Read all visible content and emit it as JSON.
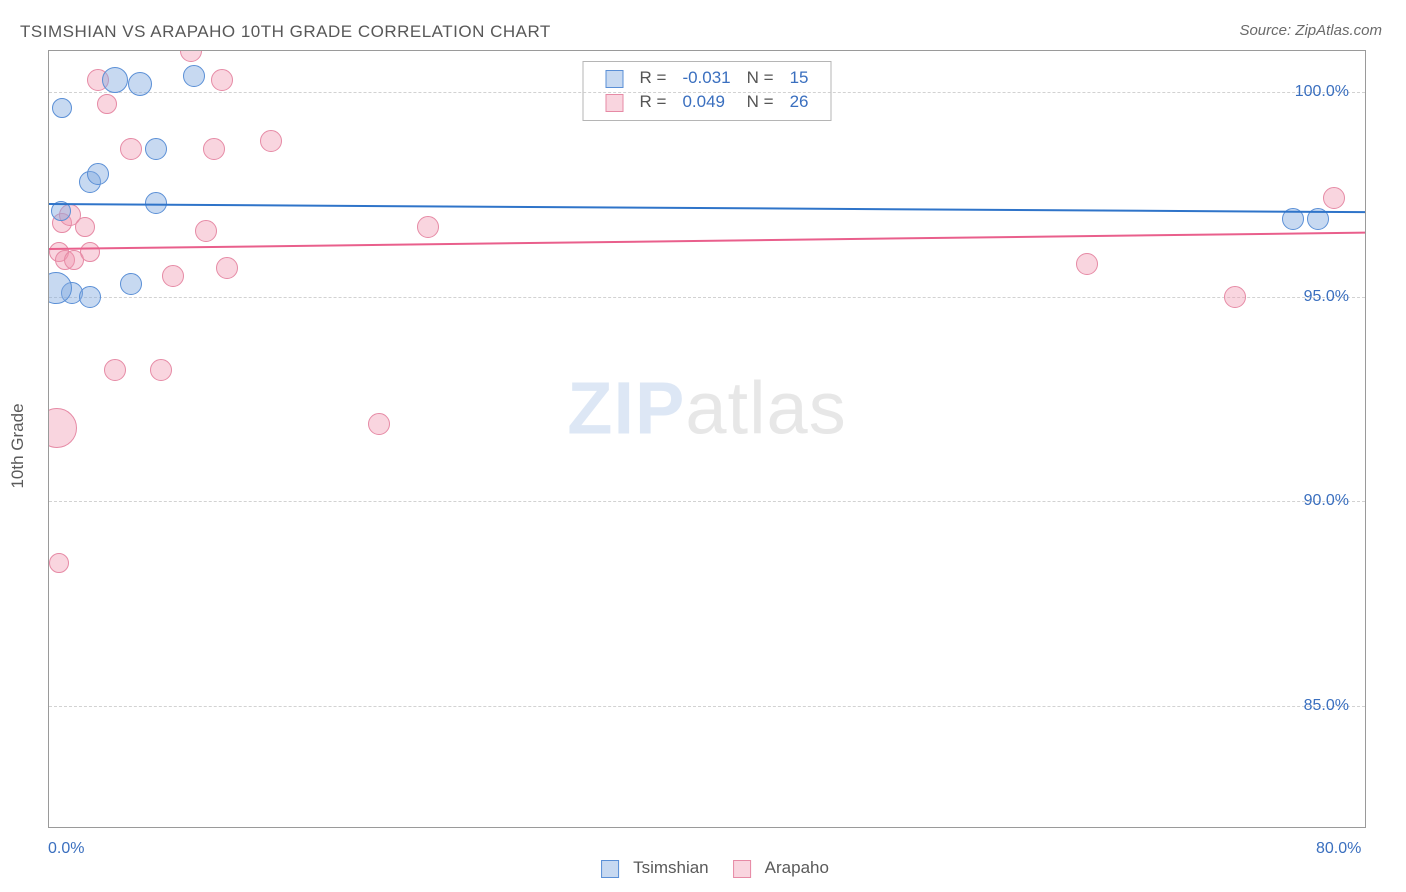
{
  "title": "TSIMSHIAN VS ARAPAHO 10TH GRADE CORRELATION CHART",
  "source_label": "Source: ZipAtlas.com",
  "y_axis_label": "10th Grade",
  "watermark": {
    "part1": "ZIP",
    "part2": "atlas"
  },
  "colors": {
    "series1_fill": "rgba(130,170,225,0.45)",
    "series1_stroke": "#5a8fd6",
    "series1_line": "#2f74c9",
    "series2_fill": "rgba(240,150,175,0.40)",
    "series2_stroke": "#e68aa5",
    "series2_line": "#e95f8c",
    "label_color": "#3a6fbf",
    "axis_text": "#5a5a5a"
  },
  "chart": {
    "type": "scatter",
    "xlim": [
      0,
      80
    ],
    "ylim": [
      82,
      101
    ],
    "y_ticks": [
      85,
      90,
      95,
      100
    ],
    "y_tick_labels": [
      "85.0%",
      "90.0%",
      "95.0%",
      "100.0%"
    ],
    "x_ticks_every": 5,
    "x_start_label": "0.0%",
    "x_end_label": "80.0%"
  },
  "stats_box": {
    "rows": [
      {
        "swatch": "series1",
        "r_label": "R =",
        "r_value": "-0.031",
        "n_label": "N =",
        "n_value": "15"
      },
      {
        "swatch": "series2",
        "r_label": "R =",
        "r_value": "0.049",
        "n_label": "N =",
        "n_value": "26"
      }
    ]
  },
  "bottom_legend": {
    "items": [
      {
        "swatch": "series1",
        "label": "Tsimshian"
      },
      {
        "swatch": "series2",
        "label": "Arapaho"
      }
    ]
  },
  "regression": {
    "series1": {
      "y_at_x0": 97.3,
      "y_at_xmax": 97.1
    },
    "series2": {
      "y_at_x0": 96.2,
      "y_at_xmax": 96.6
    }
  },
  "series1_points": [
    {
      "x": 0.8,
      "y": 99.6,
      "r": 10
    },
    {
      "x": 2.5,
      "y": 97.8,
      "r": 11
    },
    {
      "x": 3.0,
      "y": 98.0,
      "r": 11
    },
    {
      "x": 4.0,
      "y": 100.3,
      "r": 13
    },
    {
      "x": 5.0,
      "y": 95.3,
      "r": 11
    },
    {
      "x": 5.5,
      "y": 100.2,
      "r": 12
    },
    {
      "x": 6.5,
      "y": 97.3,
      "r": 11
    },
    {
      "x": 6.5,
      "y": 98.6,
      "r": 11
    },
    {
      "x": 8.8,
      "y": 100.4,
      "r": 11
    },
    {
      "x": 1.4,
      "y": 95.1,
      "r": 11
    },
    {
      "x": 0.4,
      "y": 95.2,
      "r": 16
    },
    {
      "x": 2.5,
      "y": 95.0,
      "r": 11
    },
    {
      "x": 0.7,
      "y": 97.1,
      "r": 10
    },
    {
      "x": 75.5,
      "y": 96.9,
      "r": 11
    },
    {
      "x": 77.0,
      "y": 96.9,
      "r": 11
    }
  ],
  "series2_points": [
    {
      "x": 0.5,
      "y": 91.8,
      "r": 20
    },
    {
      "x": 0.6,
      "y": 88.5,
      "r": 10
    },
    {
      "x": 0.6,
      "y": 96.1,
      "r": 10
    },
    {
      "x": 0.8,
      "y": 96.8,
      "r": 10
    },
    {
      "x": 1.0,
      "y": 95.9,
      "r": 10
    },
    {
      "x": 1.3,
      "y": 97.0,
      "r": 11
    },
    {
      "x": 1.5,
      "y": 95.9,
      "r": 10
    },
    {
      "x": 2.2,
      "y": 96.7,
      "r": 10
    },
    {
      "x": 2.5,
      "y": 96.1,
      "r": 10
    },
    {
      "x": 3.0,
      "y": 100.3,
      "r": 11
    },
    {
      "x": 3.5,
      "y": 99.7,
      "r": 10
    },
    {
      "x": 4.0,
      "y": 93.2,
      "r": 11
    },
    {
      "x": 5.0,
      "y": 98.6,
      "r": 11
    },
    {
      "x": 6.8,
      "y": 93.2,
      "r": 11
    },
    {
      "x": 7.5,
      "y": 95.5,
      "r": 11
    },
    {
      "x": 8.6,
      "y": 101.0,
      "r": 11
    },
    {
      "x": 9.5,
      "y": 96.6,
      "r": 11
    },
    {
      "x": 10.0,
      "y": 98.6,
      "r": 11
    },
    {
      "x": 10.8,
      "y": 95.7,
      "r": 11
    },
    {
      "x": 10.5,
      "y": 100.3,
      "r": 11
    },
    {
      "x": 13.5,
      "y": 98.8,
      "r": 11
    },
    {
      "x": 20.0,
      "y": 91.9,
      "r": 11
    },
    {
      "x": 23.0,
      "y": 96.7,
      "r": 11
    },
    {
      "x": 63.0,
      "y": 95.8,
      "r": 11
    },
    {
      "x": 72.0,
      "y": 95.0,
      "r": 11
    },
    {
      "x": 78.0,
      "y": 97.4,
      "r": 11
    }
  ]
}
